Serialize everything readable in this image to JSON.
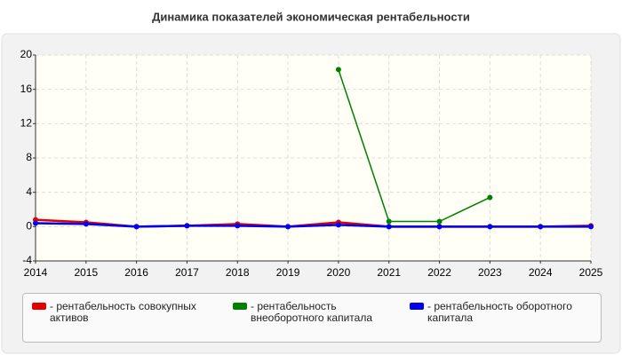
{
  "chart_data": {
    "type": "line",
    "title": "Динамика показателей экономическая рентабельности",
    "x": [
      2014,
      2015,
      2016,
      2017,
      2018,
      2019,
      2020,
      2021,
      2022,
      2023,
      2024,
      2025
    ],
    "xlim": [
      2014,
      2025
    ],
    "xticks": [
      2014,
      2015,
      2016,
      2017,
      2018,
      2019,
      2020,
      2021,
      2022,
      2023,
      2024,
      2025
    ],
    "ylim": [
      -4,
      20
    ],
    "yticks": [
      -4,
      0,
      4,
      8,
      12,
      16,
      20
    ],
    "grid": true,
    "series": [
      {
        "name": "- рентабельность совокупных активов",
        "color": "#e00000",
        "values": [
          0.8,
          0.5,
          0.0,
          0.1,
          0.3,
          0.0,
          0.5,
          0.0,
          0.0,
          0.0,
          0.0,
          0.1
        ]
      },
      {
        "name": "- рентабельность внеоборотного капитала",
        "color": "#008000",
        "values": [
          null,
          null,
          null,
          null,
          null,
          null,
          18.3,
          0.6,
          0.6,
          3.4,
          null,
          null
        ]
      },
      {
        "name": "- рентабельность оборотного капитала",
        "color": "#0000ee",
        "values": [
          0.4,
          0.3,
          0.0,
          0.1,
          0.1,
          0.0,
          0.2,
          0.0,
          0.0,
          0.0,
          0.0,
          0.0
        ]
      }
    ]
  }
}
